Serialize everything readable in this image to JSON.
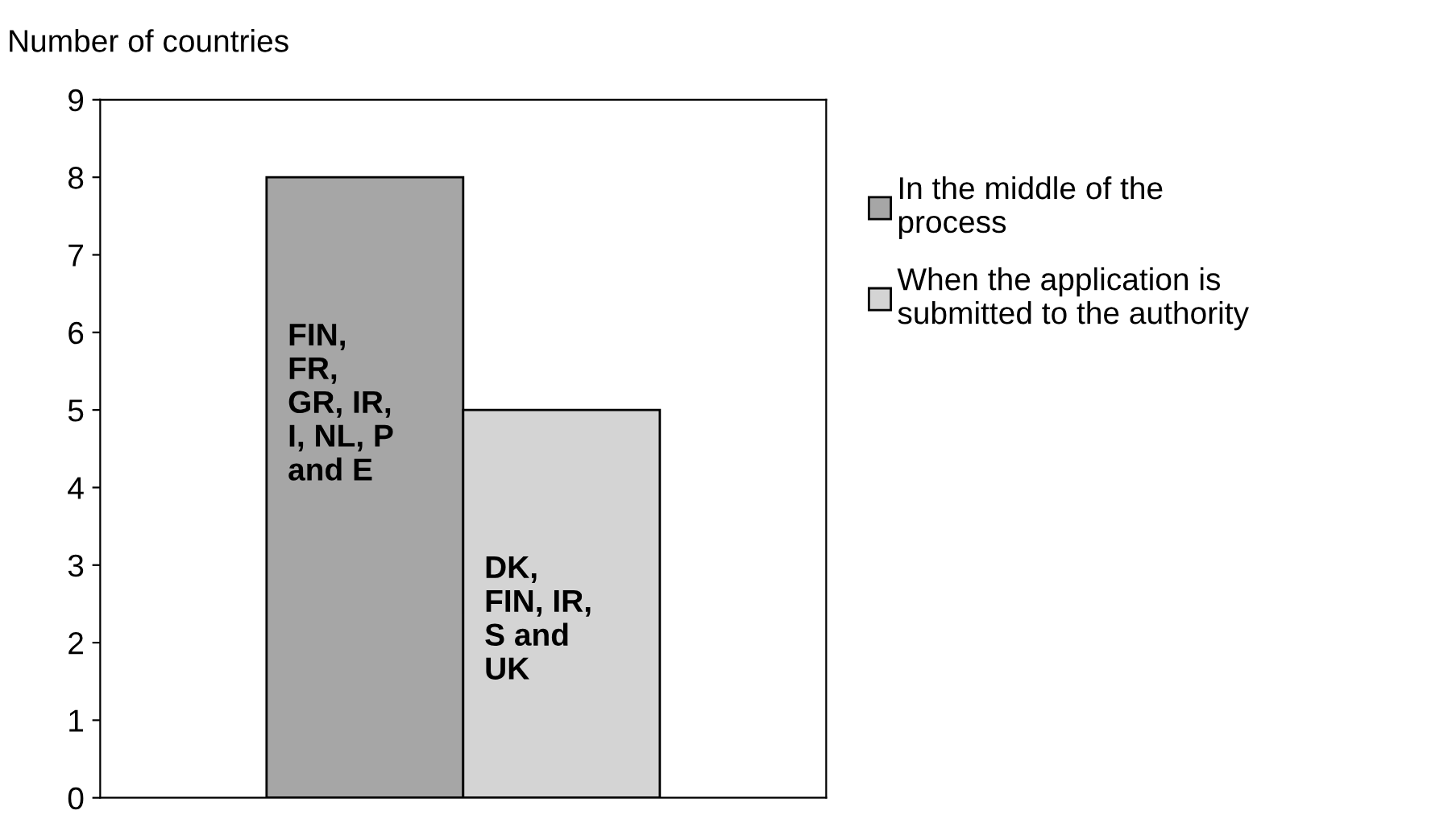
{
  "chart_data": {
    "type": "bar",
    "ylabel": "Number of countries",
    "categories": [
      null
    ],
    "series": [
      {
        "name": "In the middle of the\nprocess",
        "color": "#a6a6a6",
        "values": [
          8
        ]
      },
      {
        "name": "When the application is\nsubmitted to the authority",
        "color": "#d4d4d4",
        "values": [
          5
        ]
      }
    ],
    "ylim": [
      0,
      9
    ],
    "yticks": [
      0,
      1,
      2,
      3,
      4,
      5,
      6,
      7,
      8,
      9
    ],
    "grid": false,
    "legend": "right",
    "tick_labels": "y",
    "annotations": [
      "FIN,\nFR,\nGR, IR,\nI, NL, P\nand E",
      "DK,\nFIN, IR,\nS and\nUK"
    ]
  }
}
